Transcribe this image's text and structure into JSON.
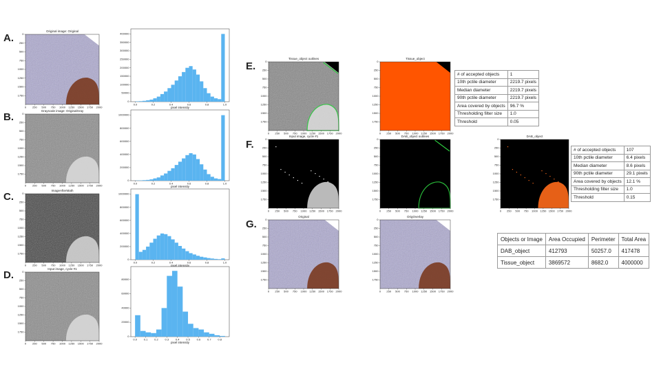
{
  "panels": [
    {
      "letter": "A."
    },
    {
      "letter": "B."
    },
    {
      "letter": "C."
    },
    {
      "letter": "D."
    },
    {
      "letter": "E."
    },
    {
      "letter": "F."
    },
    {
      "letter": "G."
    }
  ],
  "images": [
    {
      "title": "Original image: Original"
    },
    {
      "title": "Grayscale image: OriginalGray"
    },
    {
      "title": "ImageAfterMath"
    },
    {
      "title": "Input image, cycle #1"
    },
    {
      "title": "Tissue_object outlines"
    },
    {
      "title": "Tissue_object"
    },
    {
      "title": "Input image, cycle #1"
    },
    {
      "title": "DAB_object outlines"
    },
    {
      "title": "DAB_object"
    },
    {
      "title": "Original"
    },
    {
      "title": "OrigOverlay"
    }
  ],
  "image_xticks": [
    0,
    250,
    500,
    750,
    1000,
    1250,
    1500,
    1750,
    2000
  ],
  "image_yticks": [
    0,
    250,
    500,
    750,
    1000,
    1250,
    1500,
    1750
  ],
  "image_extent": [
    0,
    2000
  ],
  "chart_data": [
    {
      "type": "histogram",
      "xlabel": "pixel intensity",
      "color": "#5ab4f0",
      "bins": [
        0,
        0.04,
        0.08,
        0.12,
        0.16,
        0.2,
        0.24,
        0.28,
        0.32,
        0.36,
        0.4,
        0.44,
        0.48,
        0.52,
        0.56,
        0.6,
        0.64,
        0.68,
        0.72,
        0.76,
        0.8,
        0.84,
        0.88,
        0.92,
        0.96,
        1.0
      ],
      "counts": [
        2000,
        3000,
        5000,
        8000,
        12000,
        20000,
        30000,
        45000,
        60000,
        80000,
        100000,
        125000,
        150000,
        175000,
        200000,
        210000,
        190000,
        160000,
        120000,
        80000,
        50000,
        30000,
        20000,
        15000,
        400000
      ],
      "xlim": [
        -0.05,
        1.05
      ],
      "ylim": [
        0,
        430000
      ],
      "xticks": [
        {
          "value": 0,
          "label": "0.0"
        },
        0.2,
        0.4,
        0.6,
        0.8,
        {
          "value": 1,
          "label": "1.0"
        }
      ],
      "yticks": [
        0,
        50000,
        100000,
        150000,
        200000,
        250000,
        300000,
        350000,
        400000
      ]
    },
    {
      "type": "histogram",
      "xlabel": "pixel intensity",
      "color": "#5ab4f0",
      "bins": [
        0,
        0.04,
        0.08,
        0.12,
        0.16,
        0.2,
        0.24,
        0.28,
        0.32,
        0.36,
        0.4,
        0.44,
        0.48,
        0.52,
        0.56,
        0.6,
        0.64,
        0.68,
        0.72,
        0.76,
        0.8,
        0.84,
        0.88,
        0.92,
        0.96,
        1.0
      ],
      "counts": [
        3000,
        5000,
        8000,
        12000,
        20000,
        35000,
        50000,
        80000,
        110000,
        150000,
        190000,
        240000,
        290000,
        340000,
        390000,
        420000,
        400000,
        330000,
        250000,
        170000,
        100000,
        60000,
        35000,
        25000,
        1000000
      ],
      "xlim": [
        -0.05,
        1.05
      ],
      "ylim": [
        0,
        1080000
      ],
      "xticks": [
        {
          "value": 0,
          "label": "0.0"
        },
        0.2,
        0.4,
        0.6,
        0.8,
        {
          "value": 1,
          "label": "1.0"
        }
      ],
      "yticks": [
        0,
        200000,
        400000,
        600000,
        800000,
        1000000
      ]
    },
    {
      "type": "histogram",
      "xlabel": "pixel intensity",
      "color": "#5ab4f0",
      "bins": [
        0,
        0.04,
        0.08,
        0.12,
        0.16,
        0.2,
        0.24,
        0.28,
        0.32,
        0.36,
        0.4,
        0.44,
        0.48,
        0.52,
        0.56,
        0.6,
        0.64,
        0.68,
        0.72,
        0.76,
        0.8,
        0.84,
        0.88,
        0.92,
        0.96,
        1.0
      ],
      "counts": [
        1000000,
        120000,
        150000,
        200000,
        260000,
        320000,
        370000,
        400000,
        390000,
        360000,
        310000,
        260000,
        210000,
        170000,
        130000,
        100000,
        80000,
        60000,
        45000,
        35000,
        25000,
        18000,
        12000,
        8000,
        20000
      ],
      "xlim": [
        -0.05,
        1.05
      ],
      "ylim": [
        0,
        1080000
      ],
      "xticks": [
        {
          "value": 0,
          "label": "0.0"
        },
        0.2,
        0.4,
        0.6,
        0.8,
        {
          "value": 1,
          "label": "1.0"
        }
      ],
      "yticks": [
        0,
        200000,
        400000,
        600000,
        800000,
        1000000
      ]
    },
    {
      "type": "histogram",
      "xlabel": "pixel intensity",
      "color": "#5ab4f0",
      "bins": [
        0,
        0.05,
        0.1,
        0.15,
        0.2,
        0.25,
        0.3,
        0.35,
        0.4,
        0.45,
        0.5,
        0.55,
        0.6,
        0.65,
        0.7,
        0.75,
        0.8,
        0.85
      ],
      "counts": [
        30000,
        8000,
        6000,
        5000,
        10000,
        40000,
        85000,
        92000,
        70000,
        35000,
        18000,
        12000,
        10000,
        6000,
        4000,
        2000,
        1000
      ],
      "xlim": [
        -0.04,
        0.89
      ],
      "ylim": [
        0,
        98000
      ],
      "xticks": [
        {
          "value": 0,
          "label": "0.0"
        },
        0.1,
        0.2,
        0.3,
        0.4,
        0.5,
        0.6,
        0.7,
        0.8
      ],
      "yticks": [
        0,
        20000,
        40000,
        60000,
        80000
      ]
    }
  ],
  "tables": [
    {
      "rows": [
        [
          "# of accepted objects",
          "1"
        ],
        [
          "10th pctile diameter",
          "2219.7 pixels"
        ],
        [
          "Median diameter",
          "2219.7 pixels"
        ],
        [
          "90th pctile diameter",
          "2219.7 pixels"
        ],
        [
          "Area covered by objects",
          "96.7 %"
        ],
        [
          "Thresholding filter size",
          "1.0"
        ],
        [
          "Threshold",
          "0.05"
        ]
      ]
    },
    {
      "rows": [
        [
          "# of accepted objects",
          "107"
        ],
        [
          "10th pctile diameter",
          "6.4 pixels"
        ],
        [
          "Median diameter",
          "8.6 pixels"
        ],
        [
          "90th pctile diameter",
          "29.1 pixels"
        ],
        [
          "Area covered by objects",
          "12.1 %"
        ],
        [
          "Thresholding filter size",
          "1.0"
        ],
        [
          "Threshold",
          "0.15"
        ]
      ]
    },
    {
      "rows": [
        [
          "Objects or Image",
          "Area Occupied",
          "Perimeter",
          "Total Area"
        ],
        [
          "DAB_object",
          "412793",
          "50257.0",
          "417478"
        ],
        [
          "Tissue_object",
          "3869572",
          "8682.0",
          "4000000"
        ]
      ]
    }
  ]
}
